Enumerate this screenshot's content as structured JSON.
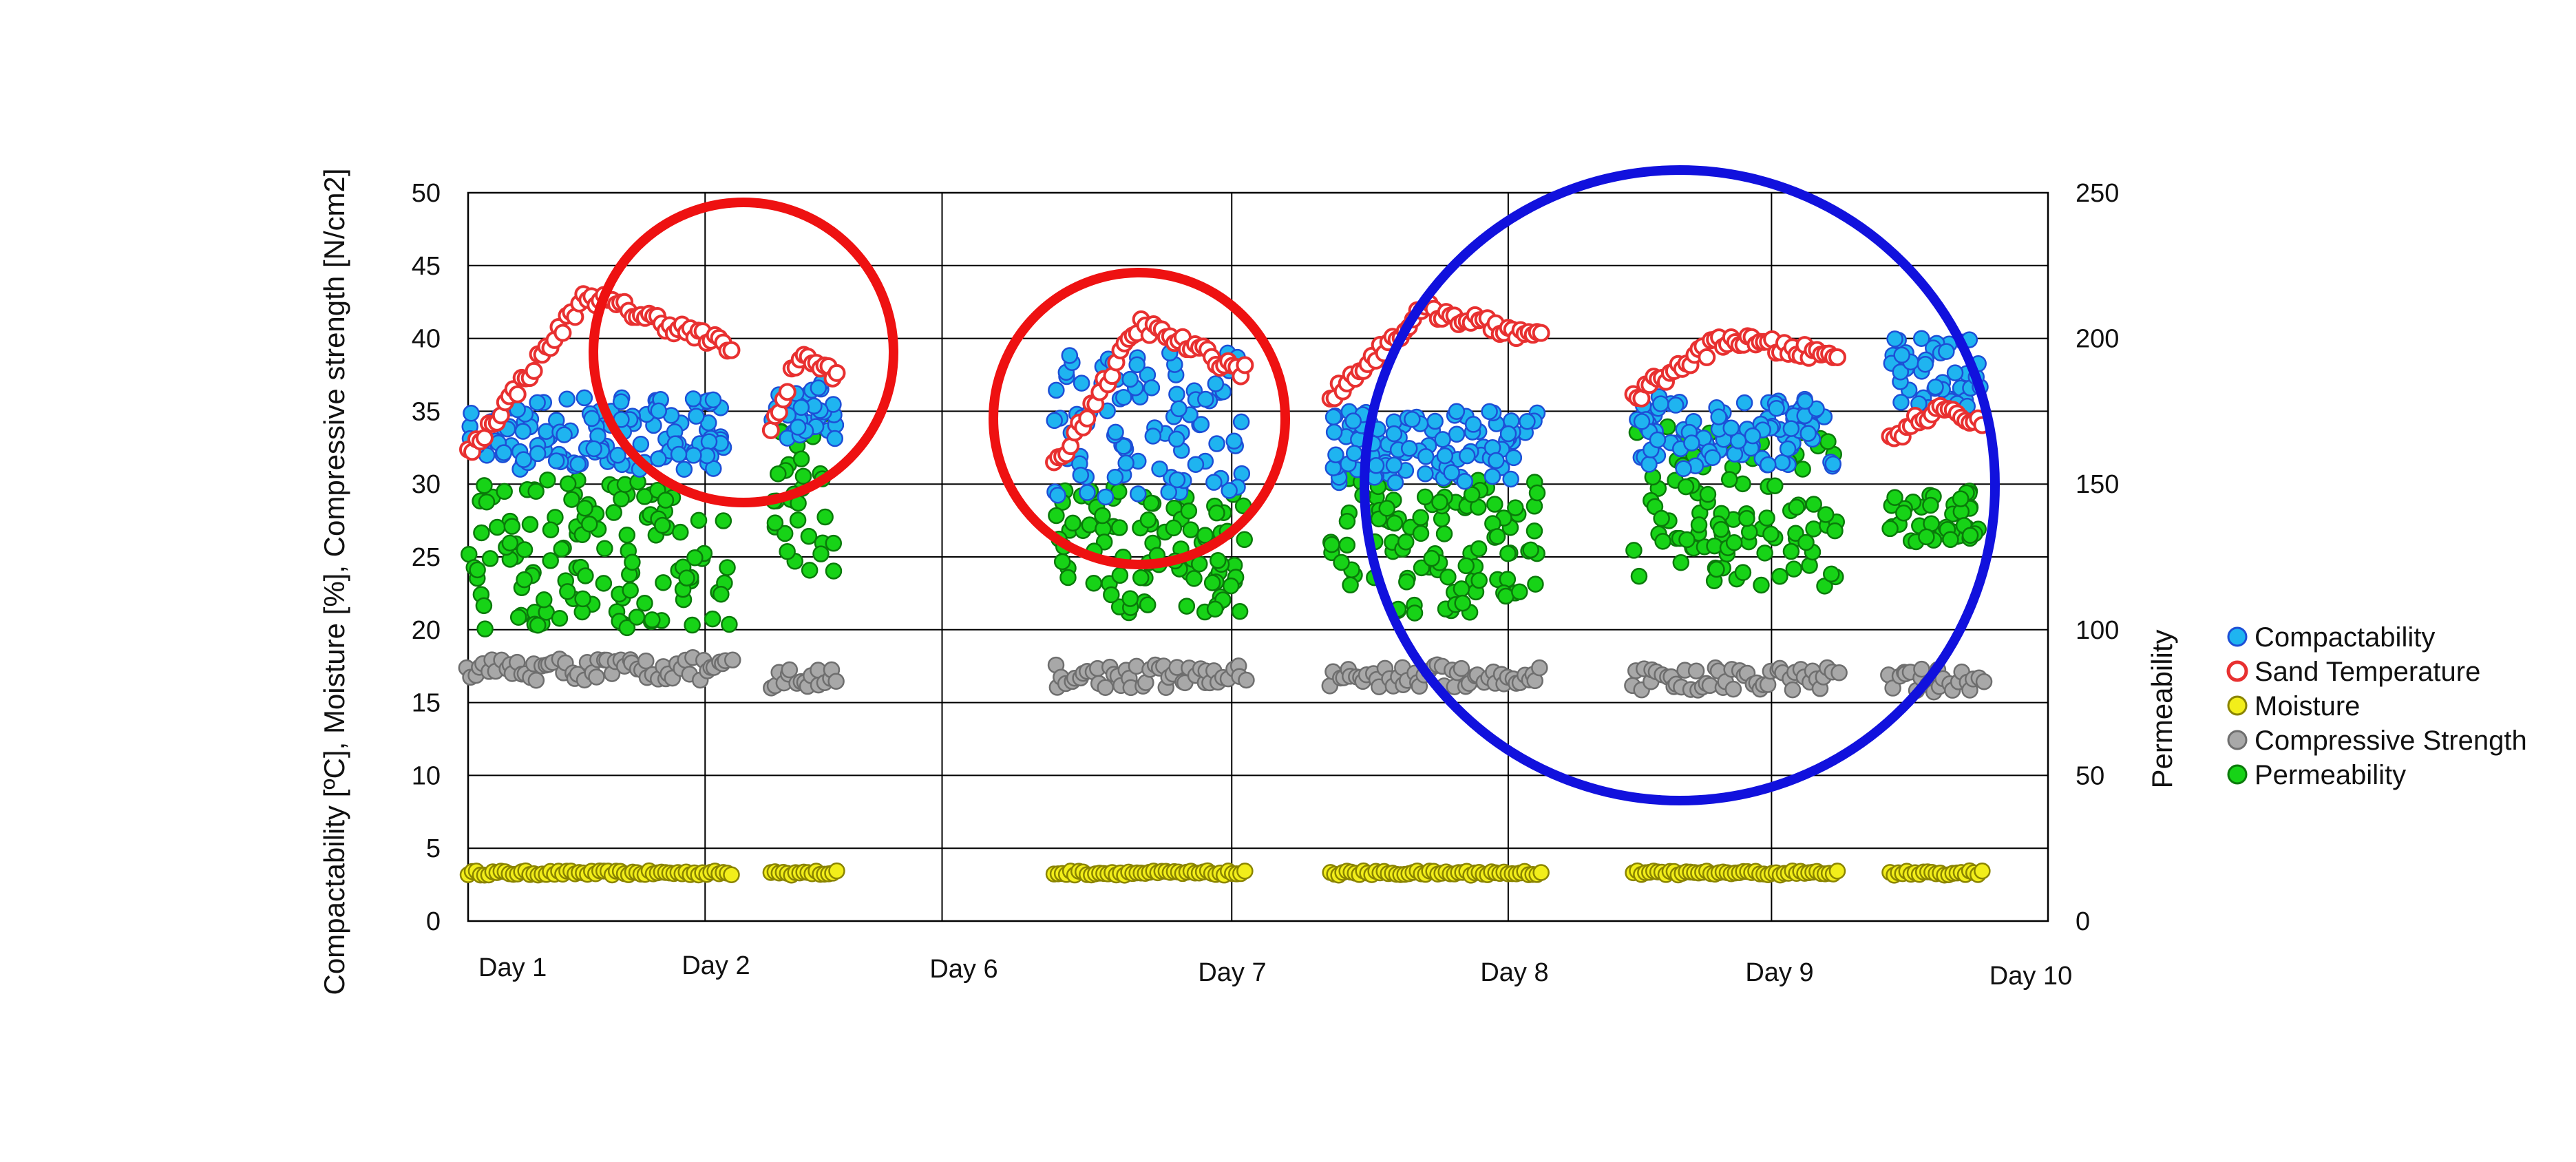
{
  "chart_data": {
    "type": "scatter",
    "title": "",
    "ylabel_left": "Compactability [ºC], Moisture [%], Compressive strength [N/cm2]",
    "ylabel_right": "Permeability",
    "ylim_left": [
      0,
      50
    ],
    "ylim_right": [
      0,
      250
    ],
    "yticks_left": [
      0,
      5,
      10,
      15,
      20,
      25,
      30,
      35,
      40,
      45,
      50
    ],
    "yticks_right": [
      0,
      50,
      100,
      150,
      200,
      250
    ],
    "xlabels": [
      "Day 1",
      "Day 2",
      "Day 6",
      "Day 7",
      "Day 8",
      "Day 9",
      "Day 10"
    ],
    "grid": true,
    "legend_position": "right",
    "series": [
      {
        "name": "Compactability",
        "axis": "left",
        "color": "#1fb4f0",
        "edge": "#1d4fd6",
        "hollow": false
      },
      {
        "name": "Sand Temperature",
        "axis": "left",
        "color": "#ffffff",
        "edge": "#e83030",
        "hollow": true
      },
      {
        "name": "Moisture",
        "axis": "left",
        "color": "#f2ee1a",
        "edge": "#8a8400",
        "hollow": false
      },
      {
        "name": "Compressive Strength",
        "axis": "left",
        "color": "#a8a8a8",
        "edge": "#6e6e6e",
        "hollow": false
      },
      {
        "name": "Permeability",
        "axis": "right",
        "color": "#17d317",
        "edge": "#0a7a0a",
        "hollow": false
      }
    ],
    "segments": [
      {
        "x": [
          0.0,
          4.0
        ],
        "compactability": [
          31,
          36
        ],
        "sand_temperature": [
          32,
          43
        ],
        "moisture": 3.3,
        "compressive_strength": 17.3,
        "permeability": [
          100,
          152
        ]
      },
      {
        "x": [
          4.6,
          5.6
        ],
        "compactability": [
          33,
          37
        ],
        "sand_temperature": [
          34,
          39
        ],
        "moisture": 3.3,
        "compressive_strength": 16.6,
        "permeability": [
          120,
          175
        ]
      },
      {
        "x": [
          8.9,
          11.8
        ],
        "compactability": [
          29,
          39
        ],
        "sand_temperature": [
          31,
          41
        ],
        "moisture": 3.3,
        "compressive_strength": 16.8,
        "permeability": [
          105,
          150
        ]
      },
      {
        "x": [
          13.1,
          16.3
        ],
        "compactability": [
          30,
          35
        ],
        "sand_temperature": [
          36,
          42
        ],
        "moisture": 3.3,
        "compressive_strength": 16.8,
        "permeability": [
          105,
          152
        ]
      },
      {
        "x": [
          17.7,
          20.8
        ],
        "compactability": [
          31,
          36
        ],
        "sand_temperature": [
          36,
          40
        ],
        "moisture": 3.3,
        "compressive_strength": 16.6,
        "permeability": [
          115,
          170
        ]
      },
      {
        "x": [
          21.6,
          23.0
        ],
        "compactability": [
          35,
          40
        ],
        "sand_temperature": [
          33,
          35
        ],
        "moisture": 3.3,
        "compressive_strength": 16.5,
        "permeability": [
          130,
          148
        ]
      }
    ],
    "annotations": [
      {
        "shape": "circle",
        "color": "#ee1111"
      },
      {
        "shape": "circle",
        "color": "#ee1111"
      },
      {
        "shape": "circle",
        "color": "#1111dd"
      }
    ]
  }
}
